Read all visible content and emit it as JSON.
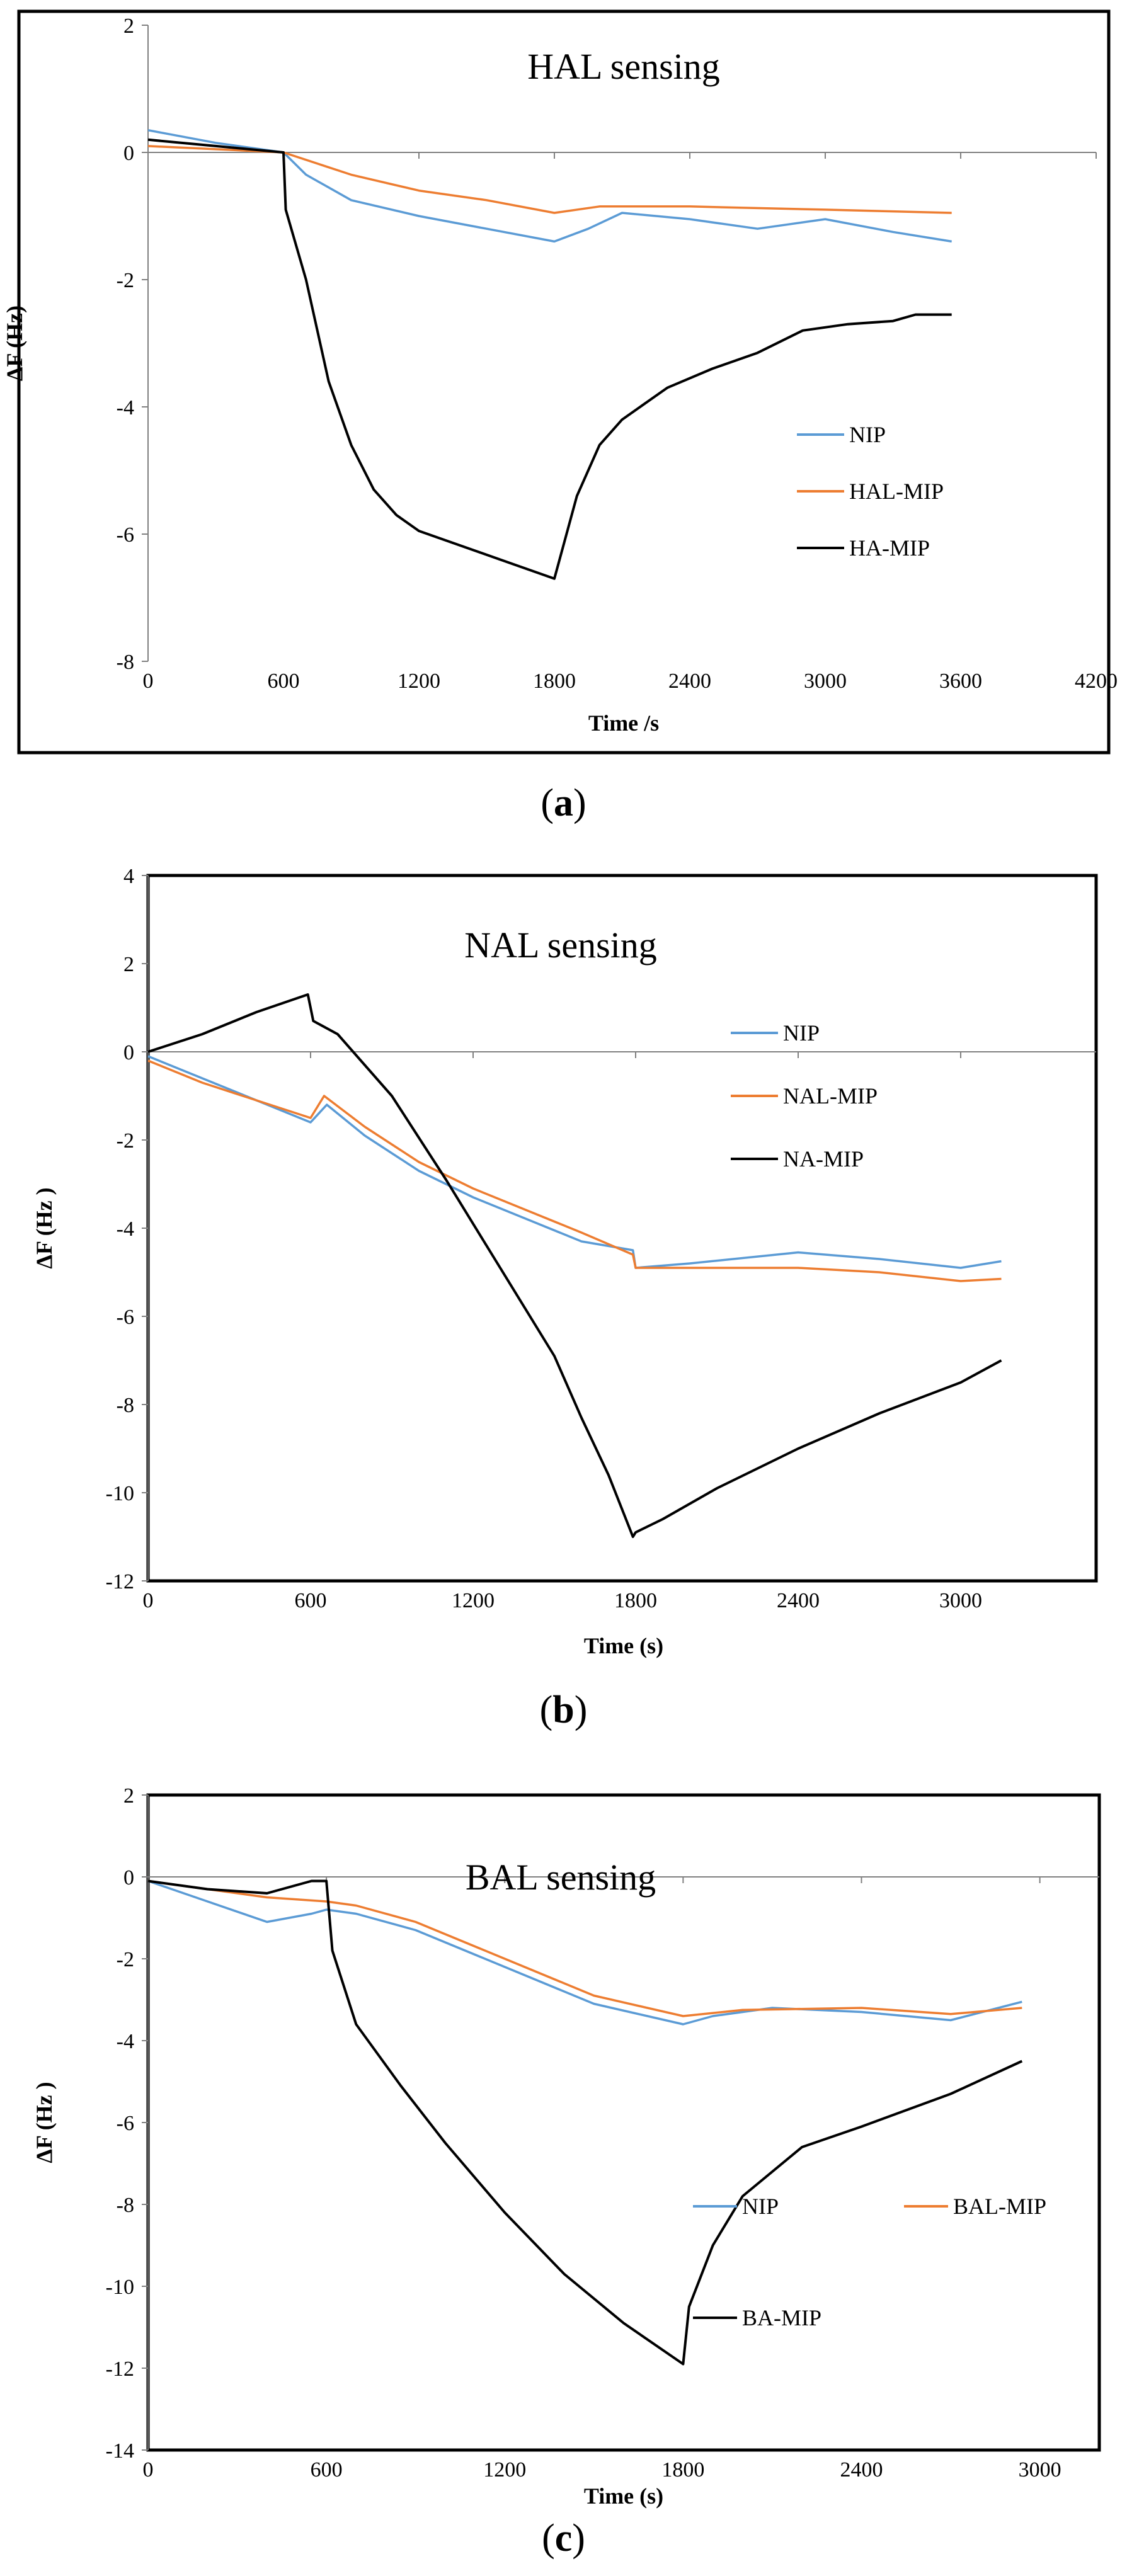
{
  "colors": {
    "nip": "#5b9bd5",
    "mip": "#ed7d31",
    "template": "#000000",
    "axis": "#808080",
    "frame": "#000000"
  },
  "panels": [
    {
      "open": "(",
      "letter": "a",
      "close": ")"
    },
    {
      "open": "(",
      "letter": "b",
      "close": ")"
    },
    {
      "open": "(",
      "letter": "c",
      "close": ")"
    }
  ],
  "chart_data": [
    {
      "type": "line",
      "title": "HAL sensing",
      "xlabel": "Time   /s",
      "ylabel": "ΔF (Hz)",
      "xlim": [
        0,
        4200
      ],
      "ylim": [
        -8,
        2
      ],
      "xticks": [
        0,
        600,
        1200,
        1800,
        2400,
        3000,
        3600,
        4200
      ],
      "yticks": [
        2,
        0,
        -2,
        -4,
        -6,
        -8
      ],
      "legend": "right",
      "series": [
        {
          "name": "NIP",
          "color": "#5b9bd5",
          "x": [
            0,
            300,
            600,
            700,
            900,
            1200,
            1500,
            1800,
            1950,
            2100,
            2400,
            2700,
            3000,
            3300,
            3560
          ],
          "y": [
            0.35,
            0.15,
            0.0,
            -0.35,
            -0.75,
            -1.0,
            -1.2,
            -1.4,
            -1.2,
            -0.95,
            -1.05,
            -1.2,
            -1.05,
            -1.25,
            -1.4
          ]
        },
        {
          "name": "HAL-MIP",
          "color": "#ed7d31",
          "x": [
            0,
            300,
            600,
            900,
            1200,
            1500,
            1800,
            2000,
            2400,
            3000,
            3560
          ],
          "y": [
            0.1,
            0.05,
            0.0,
            -0.35,
            -0.6,
            -0.75,
            -0.95,
            -0.85,
            -0.85,
            -0.9,
            -0.95
          ]
        },
        {
          "name": "HA-MIP",
          "color": "#000000",
          "x": [
            0,
            300,
            600,
            610,
            700,
            800,
            900,
            1000,
            1100,
            1200,
            1400,
            1600,
            1800,
            1900,
            2000,
            2100,
            2300,
            2500,
            2700,
            2900,
            3100,
            3300,
            3400,
            3560
          ],
          "y": [
            0.2,
            0.1,
            0.0,
            -0.9,
            -2.0,
            -3.6,
            -4.6,
            -5.3,
            -5.7,
            -5.95,
            -6.2,
            -6.45,
            -6.7,
            -5.4,
            -4.6,
            -4.2,
            -3.7,
            -3.4,
            -3.15,
            -2.8,
            -2.7,
            -2.65,
            -2.55,
            -2.55
          ]
        }
      ]
    },
    {
      "type": "line",
      "title": "NAL sensing",
      "xlabel": "Time (s)",
      "ylabel": "ΔF (Hz )",
      "xlim": [
        0,
        3500
      ],
      "ylim": [
        -12,
        4
      ],
      "xticks": [
        0,
        600,
        1200,
        1800,
        2400,
        3000
      ],
      "yticks": [
        4,
        2,
        0,
        -2,
        -4,
        -6,
        -8,
        -10,
        -12
      ],
      "legend": "right",
      "series": [
        {
          "name": "NIP",
          "color": "#5b9bd5",
          "x": [
            0,
            200,
            400,
            600,
            660,
            800,
            1000,
            1200,
            1400,
            1600,
            1790,
            1800,
            2000,
            2400,
            2700,
            3000,
            3150
          ],
          "y": [
            -0.1,
            -0.6,
            -1.1,
            -1.6,
            -1.2,
            -1.9,
            -2.7,
            -3.3,
            -3.8,
            -4.3,
            -4.5,
            -4.9,
            -4.8,
            -4.55,
            -4.7,
            -4.9,
            -4.75
          ]
        },
        {
          "name": "NAL-MIP",
          "color": "#ed7d31",
          "x": [
            0,
            200,
            400,
            600,
            650,
            800,
            1000,
            1200,
            1400,
            1600,
            1790,
            1800,
            2000,
            2400,
            2700,
            3000,
            3150
          ],
          "y": [
            -0.2,
            -0.7,
            -1.1,
            -1.5,
            -1.0,
            -1.7,
            -2.5,
            -3.1,
            -3.6,
            -4.1,
            -4.6,
            -4.9,
            -4.9,
            -4.9,
            -5.0,
            -5.2,
            -5.15
          ]
        },
        {
          "name": "NA-MIP",
          "color": "#000000",
          "x": [
            0,
            200,
            400,
            590,
            610,
            700,
            900,
            1100,
            1300,
            1500,
            1600,
            1700,
            1790,
            1800,
            1900,
            2100,
            2400,
            2700,
            3000,
            3150
          ],
          "y": [
            0.0,
            0.4,
            0.9,
            1.3,
            0.7,
            0.4,
            -1.0,
            -2.9,
            -4.9,
            -6.9,
            -8.3,
            -9.6,
            -11.0,
            -10.9,
            -10.6,
            -9.9,
            -9.0,
            -8.2,
            -7.5,
            -7.0
          ]
        }
      ]
    },
    {
      "type": "line",
      "title": "BAL sensing",
      "xlabel": "Time (s)",
      "ylabel": "ΔF (Hz )",
      "xlim": [
        0,
        3200
      ],
      "ylim": [
        -14,
        2
      ],
      "xticks": [
        0,
        600,
        1200,
        1800,
        2400,
        3000
      ],
      "yticks": [
        2,
        0,
        -2,
        -4,
        -6,
        -8,
        -10,
        -12,
        -14
      ],
      "legend": "bottom",
      "series": [
        {
          "name": "NIP",
          "color": "#5b9bd5",
          "x": [
            0,
            200,
            400,
            550,
            600,
            700,
            900,
            1200,
            1500,
            1800,
            1900,
            2100,
            2400,
            2700,
            2940
          ],
          "y": [
            -0.1,
            -0.6,
            -1.1,
            -0.9,
            -0.8,
            -0.9,
            -1.3,
            -2.2,
            -3.1,
            -3.6,
            -3.4,
            -3.2,
            -3.3,
            -3.5,
            -3.05
          ]
        },
        {
          "name": "BAL-MIP",
          "color": "#ed7d31",
          "x": [
            0,
            200,
            400,
            600,
            700,
            900,
            1200,
            1500,
            1800,
            2000,
            2400,
            2700,
            2940
          ],
          "y": [
            -0.1,
            -0.3,
            -0.5,
            -0.6,
            -0.7,
            -1.1,
            -2.0,
            -2.9,
            -3.4,
            -3.25,
            -3.2,
            -3.35,
            -3.2
          ]
        },
        {
          "name": "BA-MIP",
          "color": "#000000",
          "x": [
            0,
            200,
            400,
            550,
            600,
            620,
            700,
            850,
            1000,
            1200,
            1400,
            1600,
            1800,
            1820,
            1900,
            2000,
            2200,
            2400,
            2700,
            2940
          ],
          "y": [
            -0.1,
            -0.3,
            -0.4,
            -0.1,
            -0.1,
            -1.8,
            -3.6,
            -5.1,
            -6.5,
            -8.2,
            -9.7,
            -10.9,
            -11.9,
            -10.5,
            -9.0,
            -7.8,
            -6.6,
            -6.1,
            -5.3,
            -4.5
          ]
        }
      ]
    }
  ]
}
